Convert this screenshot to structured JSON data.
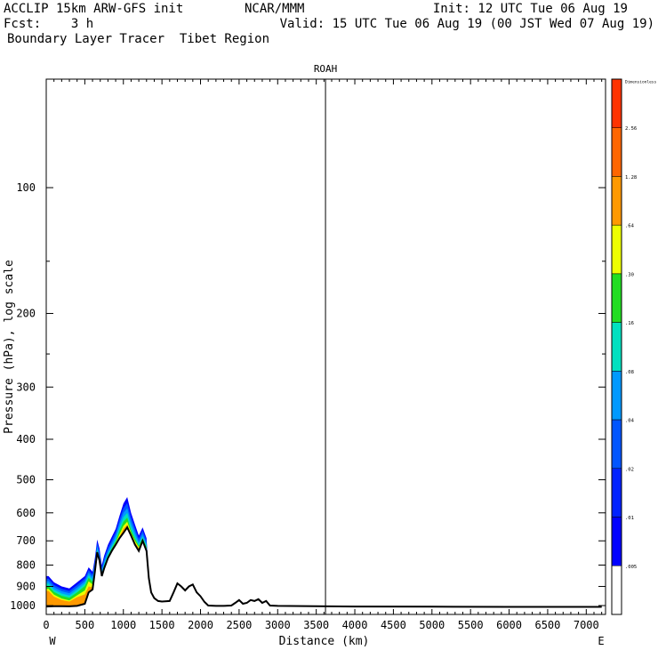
{
  "header": {
    "line1_left": "ACCLIP 15km ARW-GFS init",
    "line1_center": "NCAR/MMM",
    "line1_right": "Init: 12 UTC Tue 06 Aug 19",
    "line2_left": "Fcst:    3 h",
    "line2_right": "Valid: 15 UTC Tue 06 Aug 19 (00 JST Wed 07 Aug 19)",
    "line3_left": "Boundary Layer Tracer  Tibet Region"
  },
  "chart_data": {
    "type": "area",
    "title": "ROAH",
    "xlabel": "Distance (km)",
    "ylabel": "Pressure (hPa), log scale",
    "xlim": [
      0,
      7250
    ],
    "ylim": [
      1050,
      55
    ],
    "x_ticks": [
      0,
      500,
      1000,
      1500,
      2000,
      2500,
      3000,
      3500,
      4000,
      4500,
      5000,
      5500,
      6000,
      6500,
      7000
    ],
    "x_tick_labels": [
      "0",
      "500",
      "1000",
      "1500",
      "2000",
      "2500",
      "3000",
      "3500",
      "4000",
      "4500",
      "5000",
      "5500",
      "6000",
      "6500",
      "7000"
    ],
    "y_ticks": [
      100,
      200,
      300,
      400,
      500,
      600,
      700,
      800,
      900,
      1000
    ],
    "y_tick_labels": [
      "100",
      "200",
      "300",
      "400",
      "500",
      "600",
      "700",
      "800",
      "900",
      "1000"
    ],
    "left_end_label": "W",
    "right_end_label": "E",
    "marker_line_x_km": 3620,
    "terrain_surface_hPa": {
      "x": [
        0,
        100,
        200,
        300,
        400,
        500,
        550,
        600,
        630,
        660,
        690,
        720,
        750,
        800,
        850,
        900,
        950,
        1000,
        1050,
        1100,
        1150,
        1200,
        1250,
        1300,
        1330,
        1360,
        1400,
        1450,
        1500,
        1600,
        1650,
        1700,
        1750,
        1800,
        1850,
        1900,
        1950,
        2000,
        2050,
        2100,
        2200,
        2300,
        2400,
        2450,
        2500,
        2550,
        2600,
        2650,
        2700,
        2750,
        2800,
        2850,
        2900,
        3000,
        4000,
        5000,
        6000,
        7200
      ],
      "values": [
        1005,
        1003,
        1003,
        1004,
        1002,
        990,
        930,
        915,
        830,
        745,
        780,
        850,
        815,
        770,
        740,
        715,
        690,
        670,
        650,
        680,
        715,
        740,
        700,
        740,
        860,
        930,
        960,
        975,
        978,
        975,
        930,
        885,
        900,
        920,
        900,
        890,
        930,
        950,
        980,
        1000,
        1002,
        1002,
        1000,
        985,
        970,
        990,
        985,
        970,
        975,
        965,
        985,
        975,
        1000,
        1002,
        1005,
        1006,
        1007,
        1007
      ]
    },
    "tracer_contour_tops_hPa": {
      "x": [
        0,
        30,
        100,
        200,
        300,
        400,
        500,
        550,
        600,
        630,
        660,
        690,
        720,
        750,
        800,
        850,
        900,
        950,
        1000,
        1050,
        1100,
        1150,
        1200,
        1250,
        1300,
        1330
      ],
      "levels": [
        {
          "level": ".01",
          "color": "#0000ff",
          "values": [
            850,
            850,
            880,
            900,
            910,
            880,
            850,
            810,
            830,
            770,
            695,
            730,
            800,
            760,
            715,
            685,
            655,
            610,
            570,
            550,
            600,
            640,
            680,
            650,
            690,
            860
          ]
        },
        {
          "level": ".02",
          "color": "#0055ff",
          "values": [
            862,
            862,
            892,
            912,
            922,
            893,
            862,
            822,
            843,
            783,
            708,
            743,
            812,
            772,
            728,
            698,
            668,
            623,
            585,
            568,
            615,
            654,
            692,
            662,
            700,
            865
          ]
        },
        {
          "level": ".04",
          "color": "#0099ff",
          "values": [
            874,
            874,
            904,
            924,
            934,
            905,
            874,
            834,
            855,
            795,
            720,
            755,
            824,
            784,
            740,
            710,
            680,
            636,
            600,
            585,
            630,
            666,
            703,
            674,
            710,
            870
          ]
        },
        {
          "level": ".08",
          "color": "#00e0c0",
          "values": [
            886,
            886,
            916,
            936,
            946,
            917,
            886,
            846,
            866,
            806,
            732,
            768,
            835,
            796,
            752,
            722,
            692,
            650,
            615,
            600,
            645,
            679,
            712,
            684,
            718,
            875
          ]
        },
        {
          "level": ".16",
          "color": "#22dd22",
          "values": [
            898,
            898,
            928,
            948,
            958,
            930,
            898,
            858,
            877,
            818,
            740,
            778,
            842,
            803,
            760,
            730,
            702,
            662,
            630,
            616,
            660,
            692,
            720,
            690,
            725,
            878
          ]
        },
        {
          "level": ".30",
          "color": "#eeff00",
          "values": [
            912,
            912,
            942,
            962,
            972,
            945,
            920,
            875,
            890,
            825,
            745,
            785,
            845,
            808,
            765,
            735,
            708,
            675,
            645,
            630,
            670,
            700,
            725,
            694,
            730,
            880
          ]
        },
        {
          "level": ".64",
          "color": "#ff9900",
          "values": [
            922,
            922,
            952,
            970,
            978,
            955,
            940,
            900,
            905,
            828,
            748,
            790,
            848,
            812,
            768,
            738,
            712,
            685,
            655,
            640,
            675,
            706,
            730,
            697,
            733,
            880
          ]
        }
      ]
    },
    "colorbar": {
      "labels": [
        "Dimensionless",
        "2.56",
        "1.28",
        ".64",
        ".30",
        ".16",
        ".08",
        ".04",
        ".02",
        ".01",
        ".005"
      ],
      "colors": [
        "#ff3300",
        "#ff6600",
        "#ff9900",
        "#eeff00",
        "#22dd22",
        "#00e0c0",
        "#0099ff",
        "#0055ff",
        "#0022ff",
        "#0000ff",
        "#ffffff"
      ]
    }
  }
}
